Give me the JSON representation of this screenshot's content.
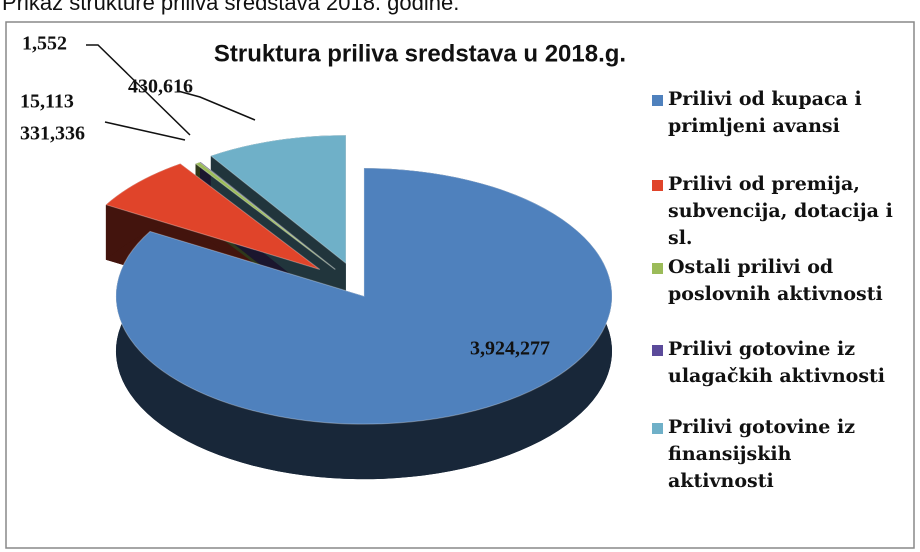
{
  "caption": "Prikaz strukture priliva sredstava 2018. godine.",
  "chart_data": {
    "type": "pie",
    "title": "Struktura priliva sredstava u 2018.g.",
    "categories": [
      "Prilivi od kupaca i primljeni avansi",
      "Prilivi od premija, subvencija, dotacija i sl.",
      "Ostali prilivi od poslovnih aktivnosti",
      "Prilivi gotovine iz ulagačkih aktivnosti",
      "Prilivi gotovine iz finansijskih aktivnosti"
    ],
    "values": [
      3924277,
      331336,
      15113,
      1552,
      430616
    ],
    "value_labels": [
      "3,924,277",
      "331,336",
      "15,113",
      "1,552",
      "430,616"
    ],
    "colors": [
      "#4f81bd",
      "#e0442a",
      "#9bbb59",
      "#5b4a9a",
      "#6fb0c8"
    ],
    "legend": "right"
  }
}
